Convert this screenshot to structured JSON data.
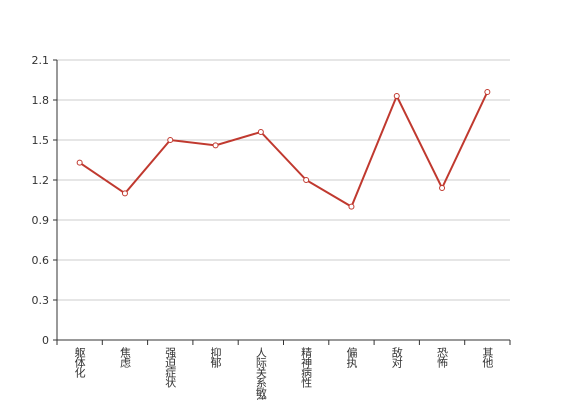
{
  "chart_data": {
    "type": "line",
    "categories": [
      "躯体化",
      "焦虑",
      "强迫症状",
      "抑郁",
      "人际关系敏感",
      "精神病性",
      "偏执",
      "敌对",
      "恐怖",
      "其他"
    ],
    "series": [
      {
        "color": "#c0392f",
        "values": [
          1.33,
          1.1,
          1.5,
          1.46,
          1.56,
          1.2,
          1.0,
          1.83,
          1.14,
          1.86
        ]
      }
    ],
    "ylim": [
      0,
      2.1
    ],
    "yticks": [
      0,
      0.3,
      0.6,
      0.9,
      1.2,
      1.5,
      1.8,
      2.1
    ],
    "grid": true
  }
}
